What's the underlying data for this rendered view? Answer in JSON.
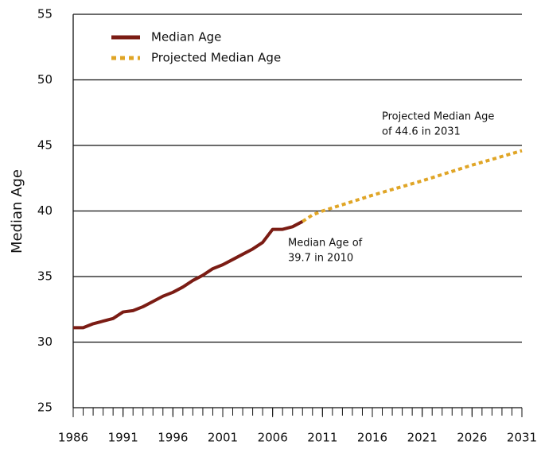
{
  "chart_data": {
    "type": "line",
    "y_label": "Median Age",
    "x": [
      1986,
      1987,
      1988,
      1989,
      1990,
      1991,
      1992,
      1993,
      1994,
      1995,
      1996,
      1997,
      1998,
      1999,
      2000,
      2001,
      2002,
      2003,
      2004,
      2005,
      2006,
      2007,
      2008,
      2009,
      2010,
      2011,
      2016,
      2021,
      2026,
      2031
    ],
    "series": [
      {
        "name": "Median Age",
        "color": "#7b1c14",
        "dash": false,
        "values": [
          31.1,
          31.1,
          31.4,
          31.6,
          31.8,
          32.3,
          32.4,
          32.7,
          33.1,
          33.5,
          33.8,
          34.2,
          34.7,
          35.1,
          35.6,
          35.9,
          36.3,
          36.7,
          37.1,
          37.6,
          38.6,
          38.6,
          38.8,
          39.2,
          null,
          null,
          null,
          null,
          null,
          null
        ]
      },
      {
        "name": "Projected Median Age",
        "color": "#e0a526",
        "dash": true,
        "values": [
          null,
          null,
          null,
          null,
          null,
          null,
          null,
          null,
          null,
          null,
          null,
          null,
          null,
          null,
          null,
          null,
          null,
          null,
          null,
          null,
          null,
          null,
          null,
          39.2,
          39.7,
          40.0,
          41.2,
          42.3,
          43.5,
          44.6
        ]
      }
    ],
    "annotations": [
      [
        "Projected Median Age",
        "of 44.6 in 2031"
      ],
      [
        "Median Age of",
        "39.7 in 2010"
      ]
    ],
    "xlim": [
      1986,
      2031
    ],
    "xticks": [
      1986,
      1991,
      1996,
      2001,
      2006,
      2011,
      2016,
      2021,
      2026,
      2031
    ],
    "ylim": [
      25,
      55
    ],
    "yticks": [
      25,
      30,
      35,
      40,
      45,
      50,
      55
    ],
    "grid": true,
    "legend": "upper left"
  }
}
